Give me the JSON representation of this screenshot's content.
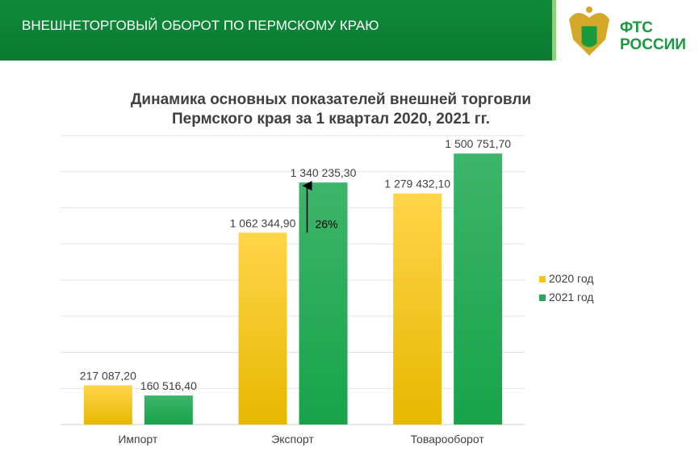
{
  "header": {
    "title": "ВНЕШНЕТОРГОВЫЙ ОБОРОТ ПО ПЕРМСКОМУ КРАЮ",
    "logo_text_1": "ФТС",
    "logo_text_2": "РОССИИ"
  },
  "chart_data": {
    "type": "bar",
    "title_line1": "Динамика основных показателей внешней торговли",
    "title_line2": "Пермского края за 1 квартал 2020, 2021 гг.",
    "categories": [
      "Импорт",
      "Экспорт",
      "Товарооборот"
    ],
    "series": [
      {
        "name": "2020 год",
        "values": [
          217087.2,
          1062344.9,
          1279432.1
        ],
        "labels": [
          "217 087,20",
          "1 062 344,90",
          "1 279 432,10"
        ],
        "color": "#f5c518"
      },
      {
        "name": "2021 год",
        "values": [
          160516.4,
          1340235.3,
          1500751.7
        ],
        "labels": [
          "160 516,40",
          "1 340 235,30",
          "1 500 751,70"
        ],
        "color": "#2aa65a"
      }
    ],
    "ylim": [
      0,
      1600000
    ],
    "grid_step": 200000,
    "grid": true,
    "legend": "right",
    "annotation": {
      "text": "26%",
      "category": "Экспорт",
      "arrow": "up"
    }
  }
}
